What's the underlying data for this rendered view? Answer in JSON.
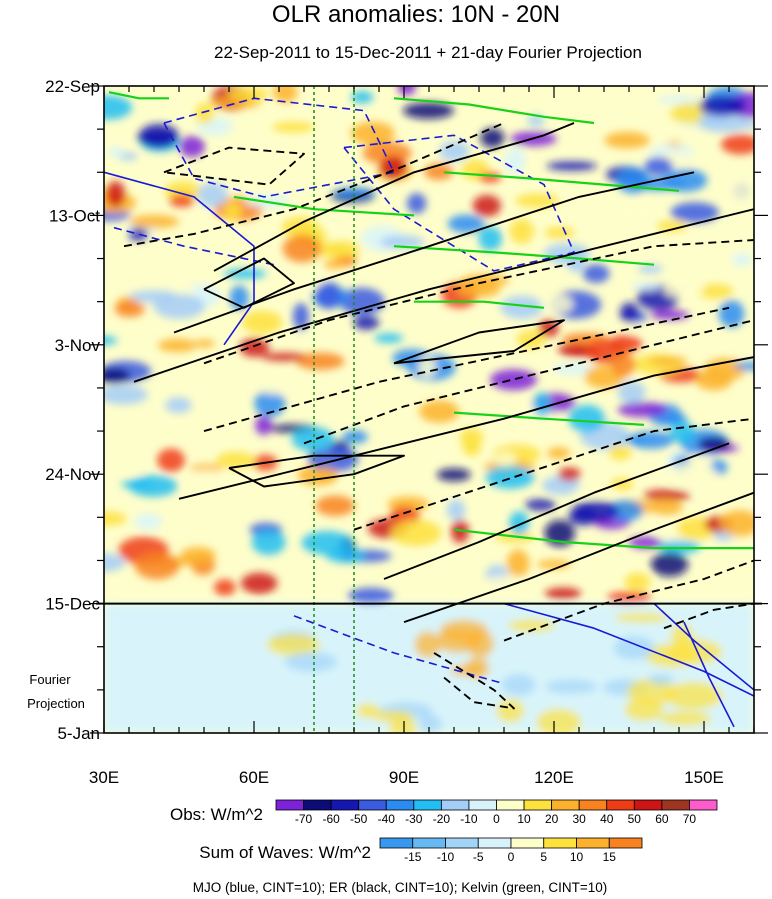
{
  "chart_data": {
    "type": "heatmap",
    "title": "OLR anomalies: 10N - 20N",
    "subtitle": "22-Sep-2011 to 15-Dec-2011 + 21-day Fourier Projection",
    "xlabel": "",
    "ylabel": "",
    "x_ticks": [
      "30E",
      "60E",
      "90E",
      "120E",
      "150E"
    ],
    "x_tick_values": [
      30,
      60,
      90,
      120,
      150
    ],
    "xlim": [
      30,
      160
    ],
    "y_ticks": [
      "22-Sep",
      "13-Oct",
      "3-Nov",
      "24-Nov",
      "15-Dec",
      "5-Jan"
    ],
    "y_tick_days": [
      0,
      21,
      42,
      63,
      84,
      105
    ],
    "ylim_days": [
      0,
      105
    ],
    "projection_label_line1": "Fourier",
    "projection_label_line2": "Projection",
    "observation_end_day": 84,
    "reference_longitudes": [
      72,
      80
    ],
    "obs_colorbar": {
      "label": "Obs: W/m^2",
      "levels": [
        -70,
        -60,
        -50,
        -40,
        -30,
        -20,
        -10,
        0,
        10,
        20,
        30,
        40,
        50,
        60,
        70
      ],
      "colors": [
        "#7c22d8",
        "#0c0c78",
        "#1616b0",
        "#3a5ae0",
        "#2a8cf2",
        "#22bdf2",
        "#a4cdf8",
        "#d8f4fa",
        "#fefecb",
        "#fde13c",
        "#fcb12c",
        "#f8821f",
        "#ee3c17",
        "#cd1515",
        "#9e3422",
        "#ff5ccb"
      ]
    },
    "waves_colorbar": {
      "label": "Sum of Waves: W/m^2",
      "levels": [
        -15,
        -10,
        -5,
        0,
        5,
        10,
        15
      ],
      "colors": [
        "#3898ef",
        "#68b8f3",
        "#a2d4f8",
        "#d8f2fb",
        "#fefecb",
        "#fde13c",
        "#fcb12c",
        "#f8821f"
      ]
    },
    "footnote": "MJO (blue, CINT=10); ER (black, CINT=10); Kelvin (green, CINT=10)",
    "contours": {
      "er_positive": [
        [
          [
            52,
            30
          ],
          [
            70,
            22
          ],
          [
            92,
            14
          ],
          [
            118,
            8
          ],
          [
            124,
            6
          ]
        ],
        [
          [
            44,
            40
          ],
          [
            68,
            33
          ],
          [
            95,
            26
          ],
          [
            125,
            18
          ],
          [
            148,
            14
          ]
        ],
        [
          [
            50,
            33
          ],
          [
            62,
            28
          ],
          [
            68,
            32
          ],
          [
            58,
            36
          ],
          [
            50,
            33
          ]
        ],
        [
          [
            36,
            48
          ],
          [
            65,
            40
          ],
          [
            95,
            33
          ],
          [
            130,
            26
          ],
          [
            160,
            20
          ]
        ],
        [
          [
            55,
            62
          ],
          [
            72,
            60
          ],
          [
            90,
            60
          ],
          [
            80,
            63
          ],
          [
            62,
            65
          ],
          [
            55,
            62
          ]
        ],
        [
          [
            45,
            67
          ],
          [
            75,
            61
          ],
          [
            110,
            54
          ],
          [
            140,
            47
          ],
          [
            160,
            44
          ]
        ],
        [
          [
            88,
            45
          ],
          [
            105,
            40
          ],
          [
            122,
            38
          ],
          [
            112,
            43
          ],
          [
            88,
            45
          ]
        ],
        [
          [
            86,
            80
          ],
          [
            105,
            74
          ],
          [
            128,
            66
          ],
          [
            155,
            58
          ]
        ],
        [
          [
            90,
            87
          ],
          [
            115,
            80
          ],
          [
            140,
            72
          ],
          [
            160,
            66
          ]
        ]
      ],
      "er_negative": [
        [
          [
            34,
            26
          ],
          [
            48,
            24
          ],
          [
            68,
            20
          ],
          [
            90,
            13
          ],
          [
            110,
            6
          ]
        ],
        [
          [
            42,
            14
          ],
          [
            55,
            10
          ],
          [
            70,
            11
          ],
          [
            63,
            16
          ],
          [
            42,
            14
          ]
        ],
        [
          [
            50,
            45
          ],
          [
            75,
            38
          ],
          [
            105,
            32
          ],
          [
            140,
            26
          ],
          [
            160,
            25
          ]
        ],
        [
          [
            70,
            58
          ],
          [
            90,
            52
          ],
          [
            115,
            47
          ],
          [
            140,
            42
          ],
          [
            160,
            38
          ]
        ],
        [
          [
            50,
            56
          ],
          [
            85,
            48
          ],
          [
            120,
            42
          ],
          [
            155,
            36
          ]
        ],
        [
          [
            80,
            72
          ],
          [
            110,
            64
          ],
          [
            140,
            56
          ],
          [
            160,
            54
          ]
        ],
        [
          [
            110,
            90
          ],
          [
            130,
            84
          ],
          [
            150,
            80
          ],
          [
            160,
            77
          ]
        ],
        [
          [
            96,
            92
          ],
          [
            108,
            98
          ],
          [
            112,
            101
          ],
          [
            104,
            100
          ],
          [
            98,
            96
          ]
        ],
        [
          [
            142,
            88
          ],
          [
            152,
            85
          ],
          [
            160,
            84
          ]
        ]
      ],
      "mjo_solid": [
        [
          [
            30,
            14
          ],
          [
            48,
            18
          ],
          [
            60,
            26
          ],
          [
            60,
            35
          ],
          [
            54,
            42
          ]
        ],
        [
          [
            110,
            84
          ],
          [
            128,
            88
          ],
          [
            150,
            95
          ],
          [
            160,
            99
          ]
        ],
        [
          [
            140,
            84
          ],
          [
            148,
            90
          ],
          [
            160,
            98
          ]
        ],
        [
          [
            146,
            87
          ],
          [
            151,
            96
          ],
          [
            156,
            104
          ]
        ]
      ],
      "mjo_dashed": [
        [
          [
            42,
            6
          ],
          [
            60,
            2
          ],
          [
            82,
            4
          ],
          [
            88,
            14
          ],
          [
            62,
            18
          ],
          [
            48,
            15
          ],
          [
            42,
            6
          ]
        ],
        [
          [
            78,
            10
          ],
          [
            100,
            8
          ],
          [
            118,
            16
          ],
          [
            124,
            27
          ],
          [
            108,
            30
          ],
          [
            88,
            20
          ],
          [
            78,
            10
          ]
        ],
        [
          [
            32,
            23
          ],
          [
            46,
            26
          ],
          [
            64,
            29
          ]
        ],
        [
          [
            68,
            86
          ],
          [
            88,
            92
          ],
          [
            110,
            97
          ]
        ]
      ],
      "kelvin": [
        [
          [
            31,
            1
          ],
          [
            37,
            2
          ],
          [
            43,
            2
          ]
        ],
        [
          [
            88,
            2
          ],
          [
            103,
            3
          ],
          [
            118,
            5
          ],
          [
            128,
            6
          ]
        ],
        [
          [
            98,
            14
          ],
          [
            115,
            15
          ],
          [
            130,
            16
          ],
          [
            145,
            17
          ]
        ],
        [
          [
            88,
            26
          ],
          [
            108,
            27
          ],
          [
            125,
            28
          ],
          [
            140,
            29
          ]
        ],
        [
          [
            92,
            35
          ],
          [
            106,
            35
          ],
          [
            118,
            36
          ]
        ],
        [
          [
            100,
            53
          ],
          [
            118,
            54
          ],
          [
            138,
            55
          ]
        ],
        [
          [
            100,
            72
          ],
          [
            122,
            74
          ],
          [
            140,
            75
          ],
          [
            160,
            75
          ]
        ],
        [
          [
            56,
            18
          ],
          [
            72,
            20
          ],
          [
            92,
            21
          ]
        ]
      ]
    },
    "annotation_count_note": ""
  }
}
